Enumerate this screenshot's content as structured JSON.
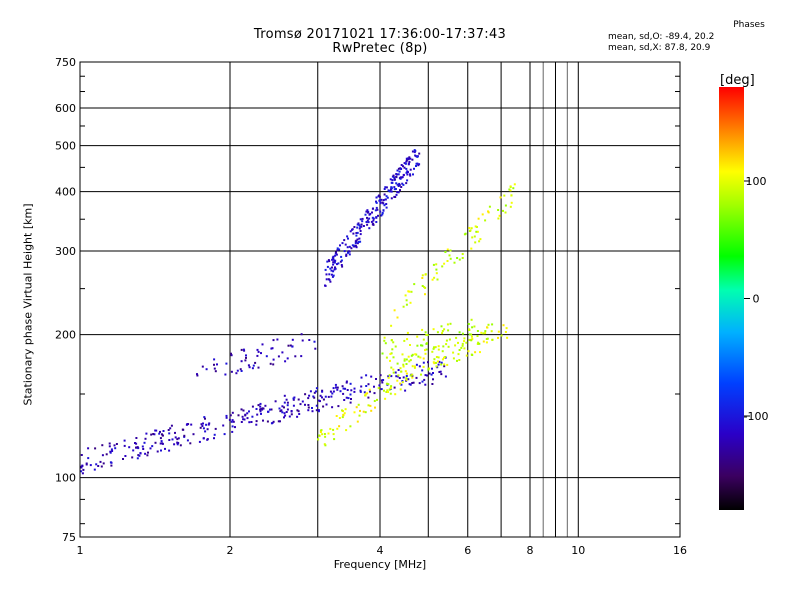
{
  "chart_data": {
    "type": "scatter",
    "title": "Tromsø 20171021 17:36:00-17:37:43",
    "subtitle": "RwPretec (8p)",
    "xlabel": "Frequency [MHz]",
    "ylabel": "Stationary phase Virtual Height [km]",
    "x_scale": "log",
    "y_scale": "log",
    "xlim": [
      1,
      16
    ],
    "ylim": [
      75,
      750
    ],
    "x_ticks": [
      1,
      2,
      4,
      6,
      8,
      10,
      16
    ],
    "x_tick_labels": [
      "1",
      "2",
      "4",
      "6",
      "8",
      "10",
      "16"
    ],
    "x_minor_ticks": [
      3,
      5,
      7,
      9
    ],
    "y_ticks": [
      75,
      100,
      200,
      300,
      400,
      500,
      600,
      750
    ],
    "y_tick_labels": [
      "75",
      "100",
      "200",
      "300",
      "400",
      "500",
      "600",
      "750"
    ],
    "grid": true,
    "stats": {
      "heading": "Phases",
      "line_o": "mean, sd,O: -89.4, 20.2",
      "line_x": "mean, sd,X:  87.8, 20.9"
    },
    "colorbar": {
      "unit": "[deg]",
      "range": [
        -180,
        180
      ],
      "ticks": [
        100,
        0,
        -100
      ],
      "tick_labels": [
        "100",
        "0",
        "-100"
      ],
      "colormap": "rainbow"
    },
    "traces": [
      {
        "name": "",
        "color_deg": -120,
        "x_range": [
          1.0,
          3.3
        ],
        "y_range": [
          108,
          150
        ],
        "count": 260
      },
      {
        "name": "",
        "color_deg": -115,
        "x_range": [
          3.3,
          5.5
        ],
        "y_range": [
          150,
          170
        ],
        "count": 90
      },
      {
        "name": "",
        "color_deg": 100,
        "x_range": [
          3.0,
          4.5
        ],
        "y_range": [
          120,
          165
        ],
        "count": 70
      },
      {
        "name": "",
        "color_deg": 95,
        "x_range": [
          4.2,
          7.2
        ],
        "y_range": [
          165,
          205
        ],
        "count": 110
      },
      {
        "name": "",
        "color_deg": 90,
        "x_range": [
          4.0,
          6.2
        ],
        "y_range": [
          185,
          205
        ],
        "count": 60
      },
      {
        "name": "",
        "color_deg": -110,
        "x_range": [
          3.1,
          4.8
        ],
        "y_range": [
          265,
          480
        ],
        "count": 260
      },
      {
        "name": "",
        "color_deg": 95,
        "x_range": [
          4.2,
          7.5
        ],
        "y_range": [
          215,
          400
        ],
        "count": 80
      },
      {
        "name": "",
        "color_deg": -120,
        "x_range": [
          1.7,
          3.0
        ],
        "y_range": [
          165,
          195
        ],
        "count": 60
      }
    ]
  }
}
